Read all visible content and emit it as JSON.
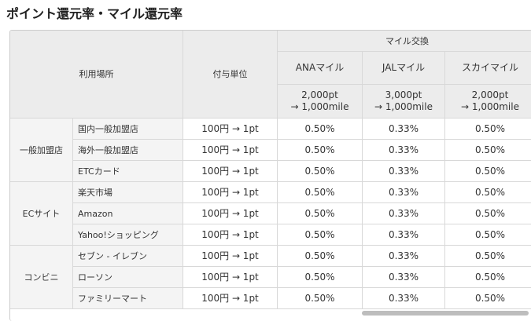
{
  "title": "ポイント還元率・マイル還元率",
  "table": {
    "header": {
      "place": "利用場所",
      "unit": "付与単位",
      "exchange": "マイル交換",
      "miles": [
        {
          "name": "ANAマイル",
          "rate": [
            "2,000pt",
            "→ 1,000mile"
          ]
        },
        {
          "name": "JALマイル",
          "rate": [
            "3,000pt",
            "→ 1,000mile"
          ]
        },
        {
          "name": "スカイマイル",
          "rate": [
            "2,000pt",
            "→ 1,000mile"
          ]
        }
      ]
    },
    "groups": [
      {
        "name": "一般加盟店",
        "rows": [
          {
            "place": "国内一般加盟店",
            "unit": "100円 → 1pt",
            "values": [
              "0.50%",
              "0.33%",
              "0.50%"
            ]
          },
          {
            "place": "海外一般加盟店",
            "unit": "100円 → 1pt",
            "values": [
              "0.50%",
              "0.33%",
              "0.50%"
            ]
          },
          {
            "place": "ETCカード",
            "unit": "100円 → 1pt",
            "values": [
              "0.50%",
              "0.33%",
              "0.50%"
            ]
          }
        ]
      },
      {
        "name": "ECサイト",
        "rows": [
          {
            "place": "楽天市場",
            "unit": "100円 → 1pt",
            "values": [
              "0.50%",
              "0.33%",
              "0.50%"
            ]
          },
          {
            "place": "Amazon",
            "unit": "100円 → 1pt",
            "values": [
              "0.50%",
              "0.33%",
              "0.50%"
            ]
          },
          {
            "place": "Yahoo!ショッピング",
            "unit": "100円 → 1pt",
            "values": [
              "0.50%",
              "0.33%",
              "0.50%"
            ]
          }
        ]
      },
      {
        "name": "コンビニ",
        "rows": [
          {
            "place": "セブン - イレブン",
            "unit": "100円 → 1pt",
            "values": [
              "0.50%",
              "0.33%",
              "0.50%"
            ]
          },
          {
            "place": "ローソン",
            "unit": "100円 → 1pt",
            "values": [
              "0.50%",
              "0.33%",
              "0.50%"
            ]
          },
          {
            "place": "ファミリーマート",
            "unit": "100円 → 1pt",
            "values": [
              "0.50%",
              "0.33%",
              "0.50%"
            ]
          }
        ]
      }
    ]
  }
}
